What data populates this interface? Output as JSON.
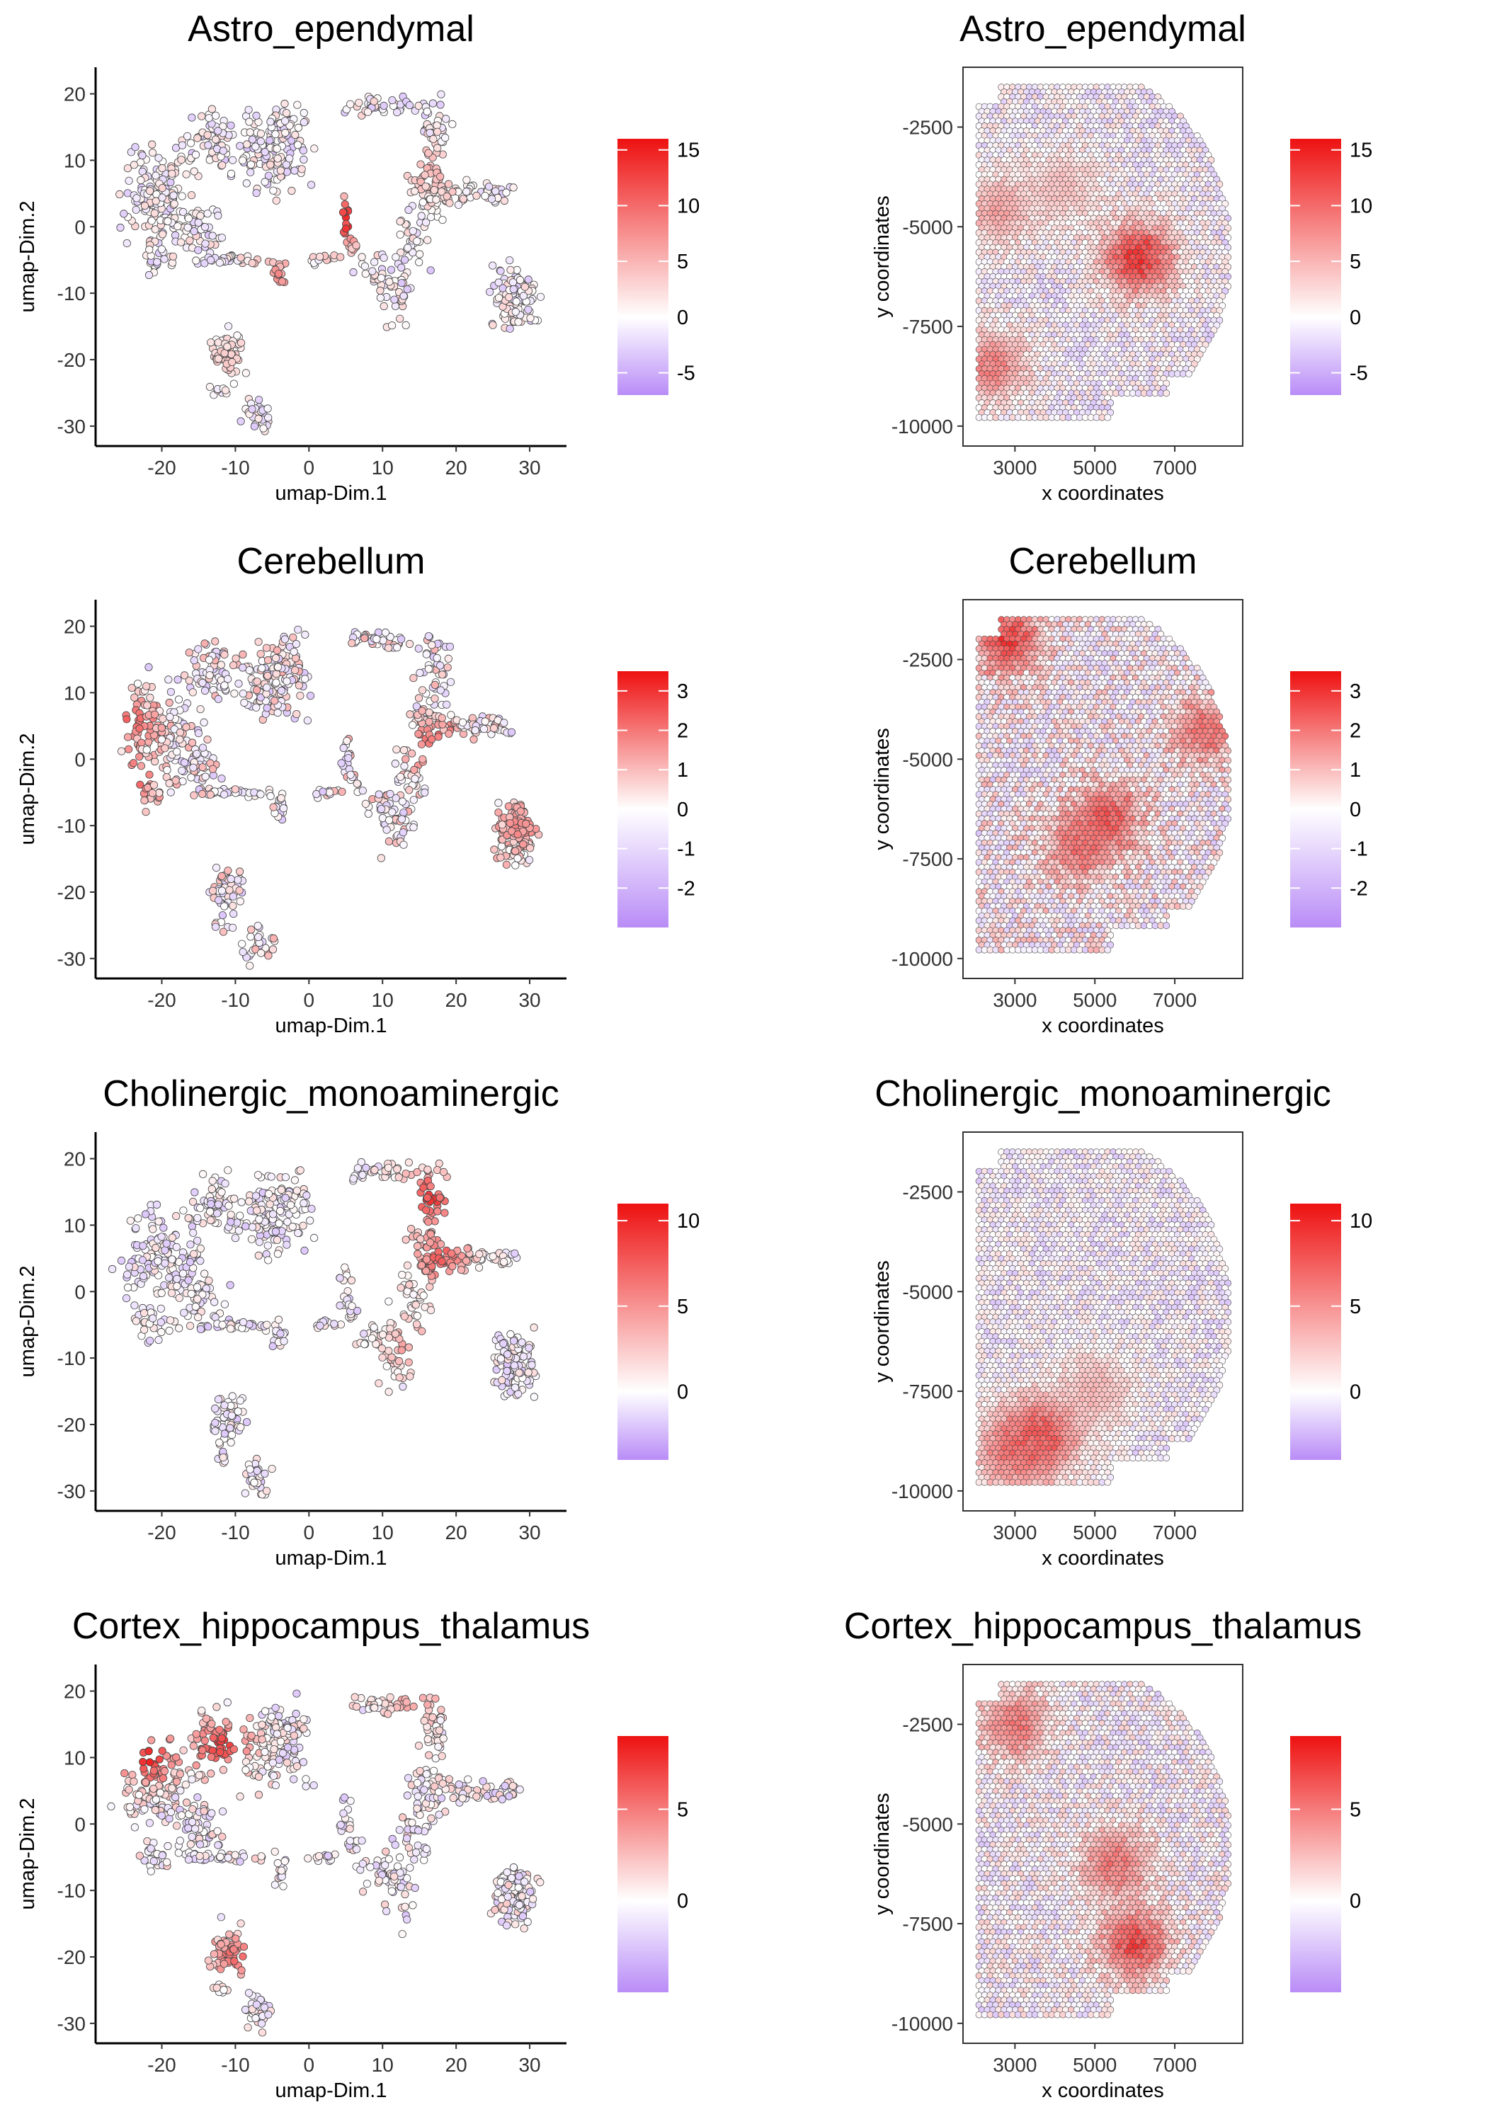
{
  "colors": {
    "low": "#b98cf7",
    "mid": "#ffffff",
    "high": "#ee1111",
    "outline": "#444444"
  },
  "chart_data": [
    {
      "type": "scatter",
      "kind": "umap",
      "title": "Astro_ependymal",
      "xlabel": "umap-Dim.1",
      "ylabel": "umap-Dim.2",
      "xlim": [
        -29,
        35
      ],
      "ylim": [
        -33,
        24
      ],
      "xticks": [
        -20,
        -10,
        0,
        10,
        20,
        30
      ],
      "yticks": [
        20,
        10,
        0,
        -10,
        -20,
        -30
      ],
      "legend": {
        "min": -7,
        "max": 16,
        "ticks": [
          15,
          10,
          5,
          0,
          -5
        ]
      },
      "hotspots": [
        [
          5,
          1,
          16
        ],
        [
          -5,
          -8,
          9
        ],
        [
          17,
          8,
          6
        ],
        [
          -11,
          -20,
          4
        ]
      ]
    },
    {
      "type": "scatter",
      "kind": "spatial",
      "title": "Astro_ependymal",
      "xlabel": "x coordinates",
      "ylabel": "y coordinates",
      "xlim": [
        1700,
        8700
      ],
      "ylim": [
        -10500,
        -1000
      ],
      "xticks": [
        3000,
        5000,
        7000
      ],
      "yticks": [
        -2500,
        -5000,
        -7500,
        -10000
      ],
      "legend": {
        "min": -7,
        "max": 16,
        "ticks": [
          15,
          10,
          5,
          0,
          -5
        ]
      },
      "hotspots": [
        [
          6100,
          -5800,
          16
        ],
        [
          2400,
          -8500,
          10
        ],
        [
          2600,
          -4600,
          7
        ],
        [
          4200,
          -4000,
          5
        ]
      ]
    },
    {
      "type": "scatter",
      "kind": "umap",
      "title": "Cerebellum",
      "xlabel": "umap-Dim.1",
      "ylabel": "umap-Dim.2",
      "xlim": [
        -29,
        35
      ],
      "ylim": [
        -33,
        24
      ],
      "xticks": [
        -20,
        -10,
        0,
        10,
        20,
        30
      ],
      "yticks": [
        20,
        10,
        0,
        -10,
        -20,
        -30
      ],
      "legend": {
        "min": -3,
        "max": 3.5,
        "ticks": [
          3,
          2,
          1,
          0,
          -1,
          -2
        ]
      },
      "hotspots": [
        [
          -25,
          -4,
          3.2
        ],
        [
          17,
          2,
          2.5
        ],
        [
          -24,
          6,
          2.5
        ],
        [
          29,
          -10,
          2
        ]
      ]
    },
    {
      "type": "scatter",
      "kind": "spatial",
      "title": "Cerebellum",
      "xlabel": "x coordinates",
      "ylabel": "y coordinates",
      "xlim": [
        1700,
        8700
      ],
      "ylim": [
        -10500,
        -1000
      ],
      "xticks": [
        3000,
        5000,
        7000
      ],
      "yticks": [
        -2500,
        -5000,
        -7500,
        -10000
      ],
      "legend": {
        "min": -3,
        "max": 3.5,
        "ticks": [
          3,
          2,
          1,
          0,
          -1,
          -2
        ]
      },
      "hotspots": [
        [
          2800,
          -2000,
          3.2
        ],
        [
          5300,
          -6500,
          3
        ],
        [
          7800,
          -4300,
          2.5
        ],
        [
          4600,
          -7200,
          2.5
        ]
      ]
    },
    {
      "type": "scatter",
      "kind": "umap",
      "title": "Cholinergic_monoaminergic",
      "xlabel": "umap-Dim.1",
      "ylabel": "umap-Dim.2",
      "xlim": [
        -29,
        35
      ],
      "ylim": [
        -33,
        24
      ],
      "xticks": [
        -20,
        -10,
        0,
        10,
        20,
        30
      ],
      "yticks": [
        20,
        10,
        0,
        -10,
        -20,
        -30
      ],
      "legend": {
        "min": -4,
        "max": 11,
        "ticks": [
          10,
          5,
          0
        ]
      },
      "hotspots": [
        [
          16,
          14,
          10
        ],
        [
          18,
          5,
          8
        ],
        [
          14,
          -8,
          5
        ]
      ]
    },
    {
      "type": "scatter",
      "kind": "spatial",
      "title": "Cholinergic_monoaminergic",
      "xlabel": "x coordinates",
      "ylabel": "y coordinates",
      "xlim": [
        1700,
        8700
      ],
      "ylim": [
        -10500,
        -1000
      ],
      "xticks": [
        3000,
        5000,
        7000
      ],
      "yticks": [
        -2500,
        -5000,
        -7500,
        -10000
      ],
      "legend": {
        "min": -4,
        "max": 11,
        "ticks": [
          10,
          5,
          0
        ]
      },
      "hotspots": [
        [
          3700,
          -8600,
          10
        ],
        [
          3000,
          -9000,
          8
        ],
        [
          5000,
          -7500,
          4
        ]
      ]
    },
    {
      "type": "scatter",
      "kind": "umap",
      "title": "Cortex_hippocampus_thalamus",
      "xlabel": "umap-Dim.1",
      "ylabel": "umap-Dim.2",
      "xlim": [
        -29,
        35
      ],
      "ylim": [
        -33,
        24
      ],
      "xticks": [
        -20,
        -10,
        0,
        10,
        20,
        30
      ],
      "yticks": [
        20,
        10,
        0,
        -10,
        -20,
        -30
      ],
      "legend": {
        "min": -5,
        "max": 9,
        "ticks": [
          5,
          0
        ]
      },
      "hotspots": [
        [
          -12,
          12,
          8
        ],
        [
          -22,
          10,
          9
        ],
        [
          -10,
          -20,
          6
        ],
        [
          14,
          18,
          4
        ]
      ]
    },
    {
      "type": "scatter",
      "kind": "spatial",
      "title": "Cortex_hippocampus_thalamus",
      "xlabel": "x coordinates",
      "ylabel": "y coordinates",
      "xlim": [
        1700,
        8700
      ],
      "ylim": [
        -10500,
        -1000
      ],
      "xticks": [
        3000,
        5000,
        7000
      ],
      "yticks": [
        -2500,
        -5000,
        -7500,
        -10000
      ],
      "legend": {
        "min": -5,
        "max": 9,
        "ticks": [
          5,
          0
        ]
      },
      "hotspots": [
        [
          6000,
          -8000,
          8
        ],
        [
          5500,
          -6000,
          6
        ],
        [
          3000,
          -2500,
          6
        ]
      ]
    }
  ]
}
